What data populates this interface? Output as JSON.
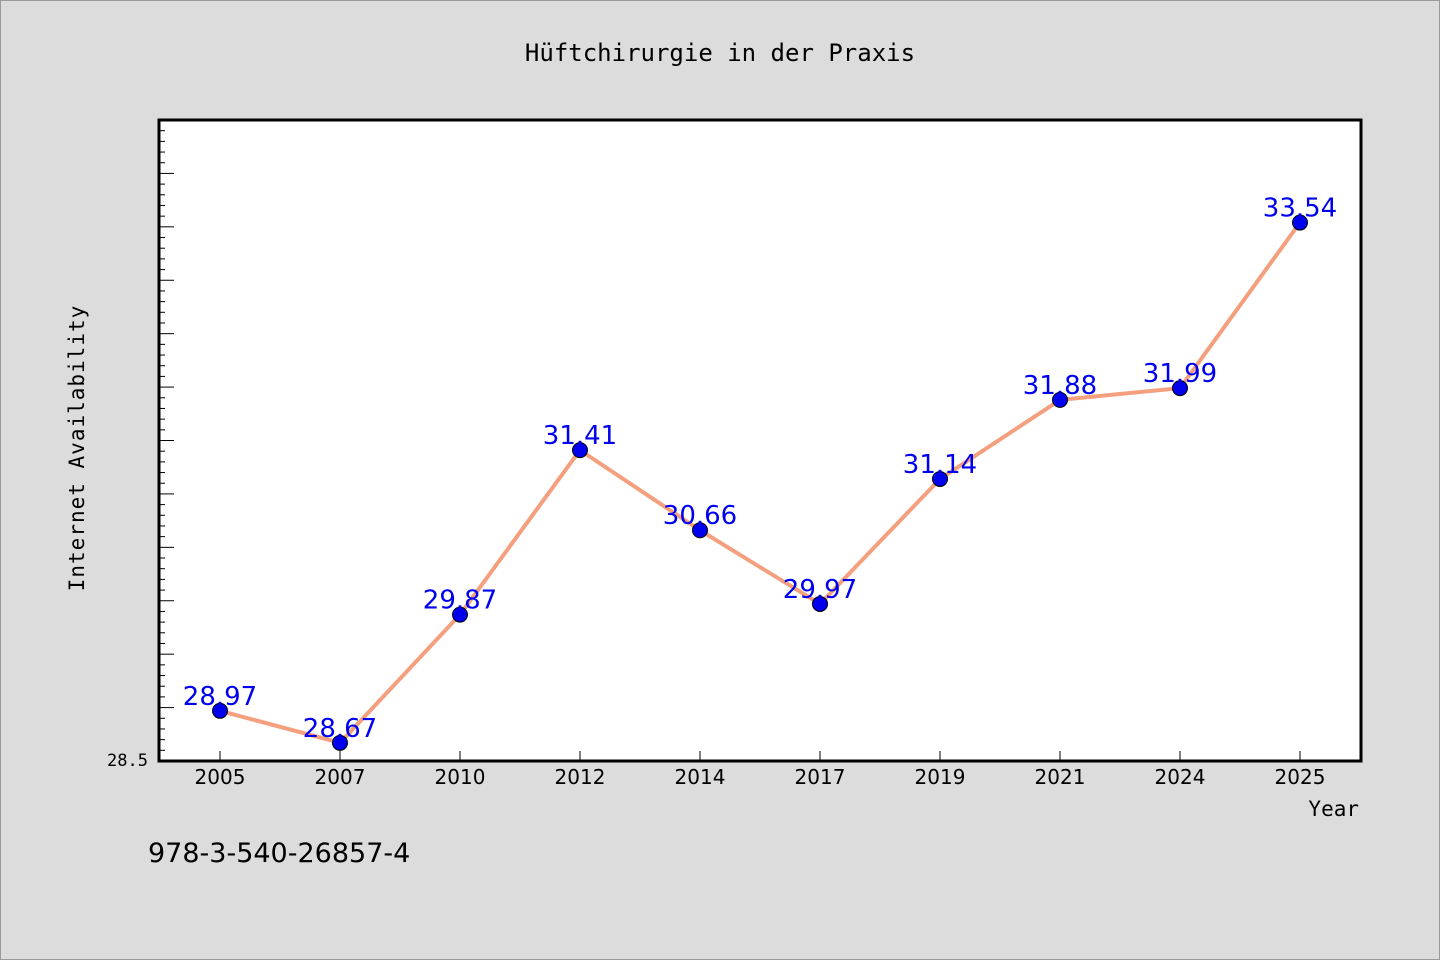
{
  "chart_data": {
    "type": "line",
    "title": "Hüftchirurgie in der Praxis",
    "xlabel": "Year",
    "ylabel": "Internet Availability",
    "categories": [
      "2005",
      "2007",
      "2010",
      "2012",
      "2014",
      "2017",
      "2019",
      "2021",
      "2024",
      "2025"
    ],
    "series": [
      {
        "values": [
          28.97,
          28.67,
          29.87,
          31.41,
          30.66,
          29.97,
          31.14,
          31.88,
          31.99,
          33.54
        ],
        "labels": [
          "28.97",
          "28.67",
          "29.87",
          "31.41",
          "30.66",
          "29.97",
          "31.14",
          "31.88",
          "31.99",
          "33.54"
        ]
      }
    ],
    "ylim": [
      28.5,
      34.5
    ],
    "yticks_labeled": [
      "28.5"
    ],
    "grid": false,
    "line_color": "#f4a07e",
    "marker_color": "#0000ee",
    "label_color": "#0000ee"
  },
  "footer": {
    "isbn": "978-3-540-26857-4"
  },
  "colors": {
    "background": "#dcdcdc",
    "plot_background": "#ffffff",
    "axis": "#000000"
  }
}
